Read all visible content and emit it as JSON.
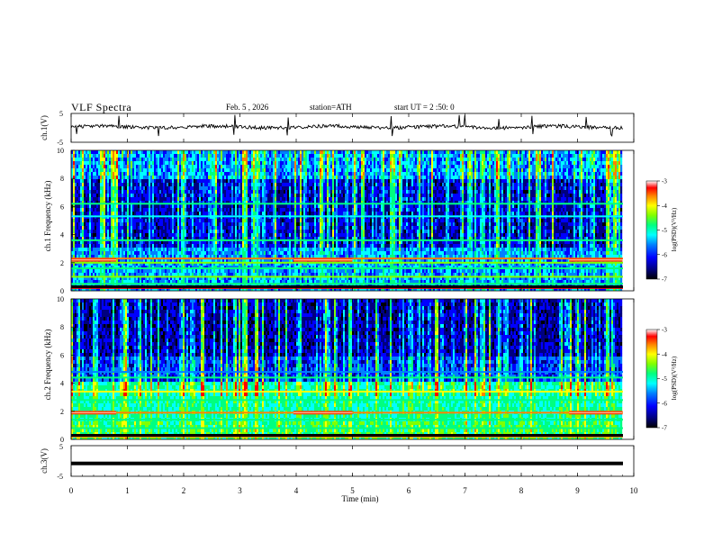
{
  "header": {
    "title": "VLF Spectra",
    "date": "Feb. 5 , 2026",
    "station": "station=ATH",
    "start": "start UT = 2 :50: 0"
  },
  "chart_data": [
    {
      "type": "line",
      "id": "ch1-waveform",
      "ylabel": "ch.1(V)",
      "ylim": [
        -5,
        5
      ],
      "yticks": [
        "5",
        "-5"
      ],
      "xlim": [
        0,
        10
      ],
      "description_values": {
        "baseline_v": 0.0,
        "spike_minutes": [
          0.1,
          0.85,
          1.55,
          2.9,
          3.85,
          5.7,
          6.9,
          7.0,
          7.6,
          8.2,
          9.15,
          9.6
        ]
      }
    },
    {
      "type": "heatmap",
      "id": "ch1-spectrogram",
      "ylabel": "ch.1 Frequency (kHz)",
      "ylim": [
        0,
        10
      ],
      "yticks": [
        "0",
        "2",
        "4",
        "6",
        "8",
        "10"
      ],
      "xlim": [
        0,
        10
      ],
      "colorbar": {
        "label": "log(PSD)(V²/Hz)",
        "range": [
          -7,
          -3
        ],
        "ticks": [
          "-3",
          "-4",
          "-5",
          "-6",
          "-7"
        ]
      },
      "bands_khz": [
        {
          "freq": 0.2,
          "level": -3.2
        },
        {
          "freq": 0.5,
          "level": -4.8
        },
        {
          "freq": 1.0,
          "level": -4.6
        },
        {
          "freq": 1.6,
          "level": -5.0
        },
        {
          "freq": 2.0,
          "level": -4.5
        },
        {
          "freq": 2.3,
          "level": -3.8
        },
        {
          "freq": 3.6,
          "level": -4.9
        },
        {
          "freq": 5.3,
          "level": -5.2
        },
        {
          "freq": 6.2,
          "level": -5.0
        }
      ],
      "burst_intervals_min": [
        [
          0,
          0.8
        ],
        [
          3.95,
          5.0
        ],
        [
          8.85,
          9.8
        ]
      ]
    },
    {
      "type": "heatmap",
      "id": "ch2-spectrogram",
      "ylabel": "ch.2 Frequency (kHz)",
      "ylim": [
        0,
        10
      ],
      "yticks": [
        "0",
        "2",
        "4",
        "6",
        "8",
        "10"
      ],
      "xlim": [
        0,
        10
      ],
      "colorbar": {
        "label": "log(PSD)(V²/Hz)",
        "range": [
          -7,
          -3
        ],
        "ticks": [
          "-3",
          "-4",
          "-5",
          "-6",
          "-7"
        ]
      },
      "bands_khz": [
        {
          "freq": 0.2,
          "level": -3.5
        },
        {
          "freq": 0.8,
          "level": -4.9
        },
        {
          "freq": 1.4,
          "level": -4.7
        },
        {
          "freq": 1.9,
          "level": -3.8
        },
        {
          "freq": 2.8,
          "level": -4.9
        },
        {
          "freq": 3.4,
          "level": -4.2
        },
        {
          "freq": 4.4,
          "level": -5.0
        },
        {
          "freq": 4.8,
          "level": -5.6
        }
      ],
      "burst_intervals_min": [
        [
          0,
          0.8
        ],
        [
          3.95,
          5.0
        ],
        [
          8.85,
          9.8
        ]
      ]
    },
    {
      "type": "line",
      "id": "ch3-waveform",
      "ylabel": "ch.3(V)",
      "ylim": [
        -5,
        5
      ],
      "yticks": [
        "5",
        "-5"
      ],
      "xlim": [
        0,
        10
      ],
      "description_values": {
        "level_v": -0.8
      }
    }
  ],
  "xaxis": {
    "label": "Time (min)",
    "ticks": [
      "0",
      "1",
      "2",
      "3",
      "4",
      "5",
      "6",
      "7",
      "8",
      "9",
      "10"
    ]
  },
  "colors": {
    "cmap": [
      "#000000",
      "#00007f",
      "#0000ff",
      "#0080ff",
      "#00ffff",
      "#00ff80",
      "#80ff00",
      "#ffff00",
      "#ff8000",
      "#ff0000",
      "#ffffff"
    ]
  }
}
